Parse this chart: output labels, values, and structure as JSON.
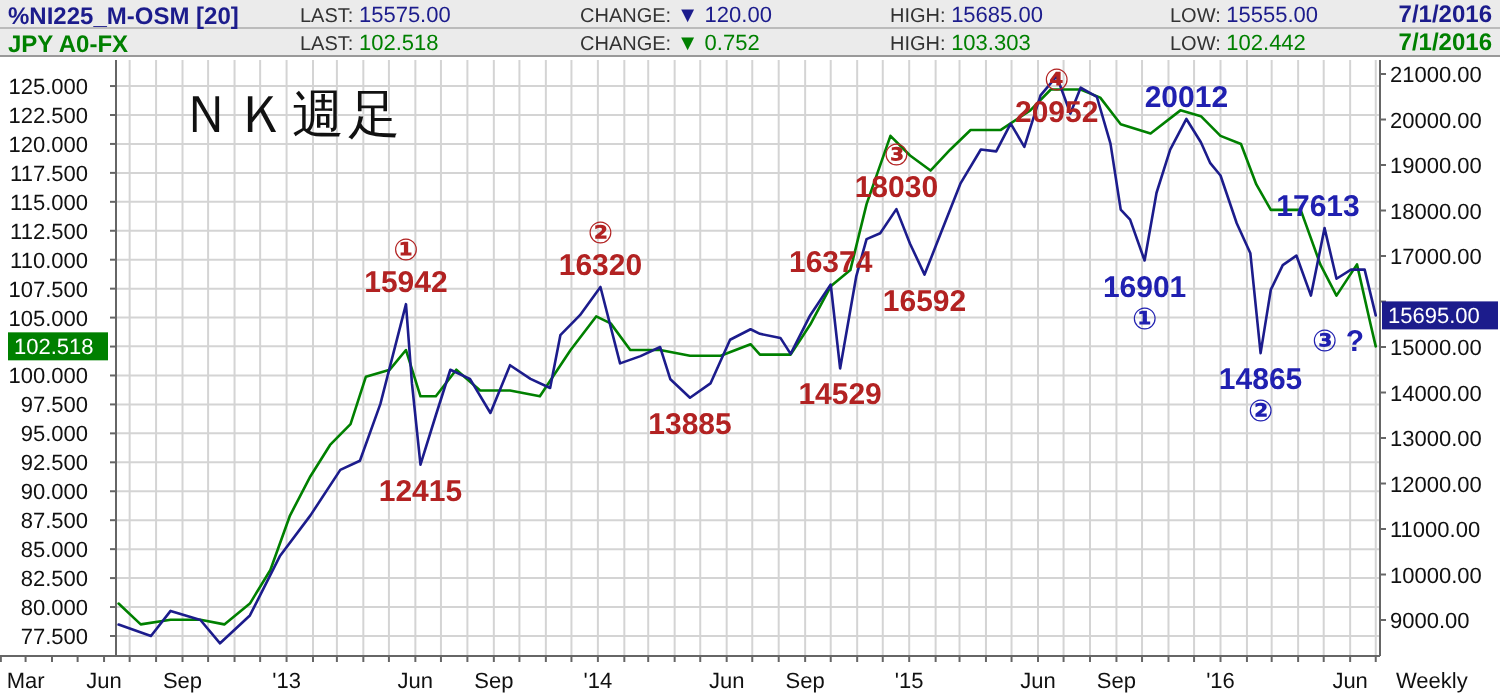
{
  "chart_data": {
    "type": "line",
    "title": "ＮＫ週足",
    "xlabel": "Weekly",
    "xlim": [
      "2012-01-31",
      "2016-07-06"
    ],
    "xticks": [
      {
        "value": "2012-02",
        "label": null
      },
      {
        "value": "2012-03",
        "label": "Mar"
      },
      {
        "value": "2012-04",
        "label": null
      },
      {
        "value": "2012-05",
        "label": null
      },
      {
        "value": "2012-06",
        "label": "Jun"
      },
      {
        "value": "2012-07",
        "label": null
      },
      {
        "value": "2012-08",
        "label": null
      },
      {
        "value": "2012-09",
        "label": "Sep"
      },
      {
        "value": "2012-10",
        "label": null
      },
      {
        "value": "2012-11",
        "label": null
      },
      {
        "value": "2012-12",
        "label": null
      },
      {
        "value": "2013-01",
        "label": "'13"
      },
      {
        "value": "2013-02",
        "label": null
      },
      {
        "value": "2013-03",
        "label": null
      },
      {
        "value": "2013-04",
        "label": null
      },
      {
        "value": "2013-05",
        "label": null
      },
      {
        "value": "2013-06",
        "label": "Jun"
      },
      {
        "value": "2013-07",
        "label": null
      },
      {
        "value": "2013-08",
        "label": null
      },
      {
        "value": "2013-09",
        "label": "Sep"
      },
      {
        "value": "2013-10",
        "label": null
      },
      {
        "value": "2013-11",
        "label": null
      },
      {
        "value": "2013-12",
        "label": null
      },
      {
        "value": "2014-01",
        "label": "'14"
      },
      {
        "value": "2014-02",
        "label": null
      },
      {
        "value": "2014-03",
        "label": null
      },
      {
        "value": "2014-04",
        "label": null
      },
      {
        "value": "2014-05",
        "label": null
      },
      {
        "value": "2014-06",
        "label": "Jun"
      },
      {
        "value": "2014-07",
        "label": null
      },
      {
        "value": "2014-08",
        "label": null
      },
      {
        "value": "2014-09",
        "label": "Sep"
      },
      {
        "value": "2014-10",
        "label": null
      },
      {
        "value": "2014-11",
        "label": null
      },
      {
        "value": "2014-12",
        "label": null
      },
      {
        "value": "2015-01",
        "label": "'15"
      },
      {
        "value": "2015-02",
        "label": null
      },
      {
        "value": "2015-03",
        "label": null
      },
      {
        "value": "2015-04",
        "label": null
      },
      {
        "value": "2015-05",
        "label": null
      },
      {
        "value": "2015-06",
        "label": "Jun"
      },
      {
        "value": "2015-07",
        "label": null
      },
      {
        "value": "2015-08",
        "label": null
      },
      {
        "value": "2015-09",
        "label": "Sep"
      },
      {
        "value": "2015-10",
        "label": null
      },
      {
        "value": "2015-11",
        "label": null
      },
      {
        "value": "2015-12",
        "label": null
      },
      {
        "value": "2016-01",
        "label": "'16"
      },
      {
        "value": "2016-02",
        "label": null
      },
      {
        "value": "2016-03",
        "label": null
      },
      {
        "value": "2016-04",
        "label": null
      },
      {
        "value": "2016-05",
        "label": null
      },
      {
        "value": "2016-06",
        "label": "Jun"
      },
      {
        "value": "2016-07",
        "label": null
      }
    ],
    "y2lim": [
      75.77,
      127.25
    ],
    "y2ticks": [
      {
        "value": 77.5,
        "label": "77.500"
      },
      {
        "value": 80,
        "label": "80.000"
      },
      {
        "value": 82.5,
        "label": "82.500"
      },
      {
        "value": 85,
        "label": "85.000"
      },
      {
        "value": 87.5,
        "label": "87.500"
      },
      {
        "value": 90,
        "label": "90.000"
      },
      {
        "value": 92.5,
        "label": "92.500"
      },
      {
        "value": 95,
        "label": "95.000"
      },
      {
        "value": 97.5,
        "label": "97.500"
      },
      {
        "value": 100,
        "label": "100.000"
      },
      {
        "value": 102.5,
        "label": null
      },
      {
        "value": 105,
        "label": "105.000"
      },
      {
        "value": 107.5,
        "label": "107.500"
      },
      {
        "value": 110,
        "label": "110.000"
      },
      {
        "value": 112.5,
        "label": "112.500"
      },
      {
        "value": 115,
        "label": "115.000"
      },
      {
        "value": 117.5,
        "label": "117.500"
      },
      {
        "value": 120,
        "label": "120.000"
      },
      {
        "value": 122.5,
        "label": "122.500"
      },
      {
        "value": 125,
        "label": "125.000"
      },
      {
        "value": 102.518,
        "label": "102.518"
      }
    ],
    "ylim": [
      8209,
      21308
    ],
    "yticks": [
      {
        "value": 9000,
        "label": "9000.00"
      },
      {
        "value": 10000,
        "label": "10000.00"
      },
      {
        "value": 11000,
        "label": "11000.00"
      },
      {
        "value": 12000,
        "label": "12000.00"
      },
      {
        "value": 13000,
        "label": "13000.00"
      },
      {
        "value": 14000,
        "label": "14000.00"
      },
      {
        "value": 15000,
        "label": "15000.00"
      },
      {
        "value": 16000,
        "label": null
      },
      {
        "value": 17000,
        "label": "17000.00"
      },
      {
        "value": 18000,
        "label": "18000.00"
      },
      {
        "value": 19000,
        "label": "19000.00"
      },
      {
        "value": 20000,
        "label": "20000.00"
      },
      {
        "value": 21000,
        "label": "21000.00"
      },
      {
        "value": 15695,
        "label": "15695.00"
      }
    ],
    "grid": true,
    "legend": "top",
    "series": [
      {
        "name": "%NI225_M-OSM [20]",
        "color": "#1c1c8c",
        "x": [
          "2012-06-18",
          "2012-07-26",
          "2012-08-18",
          "2012-09-22",
          "2012-10-15",
          "2012-11-19",
          "2012-12-24",
          "2013-01-29",
          "2013-03-05",
          "2013-03-28",
          "2013-04-21",
          "2013-05-21",
          "2013-05-28",
          "2013-06-07",
          "2013-06-25",
          "2013-07-12",
          "2013-08-04",
          "2013-08-28",
          "2013-09-20",
          "2013-10-14",
          "2013-11-06",
          "2013-11-18",
          "2013-12-11",
          "2014-01-04",
          "2014-01-27",
          "2014-02-20",
          "2014-03-15",
          "2014-03-27",
          "2014-04-19",
          "2014-05-13",
          "2014-06-05",
          "2014-06-29",
          "2014-07-10",
          "2014-08-03",
          "2014-08-15",
          "2014-09-07",
          "2014-10-01",
          "2014-10-12",
          "2014-10-31",
          "2014-11-12",
          "2014-11-28",
          "2014-12-17",
          "2015-01-02",
          "2015-01-19",
          "2015-02-07",
          "2015-03-02",
          "2015-03-26",
          "2015-04-13",
          "2015-04-30",
          "2015-05-16",
          "2015-06-04",
          "2015-06-23",
          "2015-07-09",
          "2015-07-21",
          "2015-08-09",
          "2015-08-25",
          "2015-09-06",
          "2015-09-17",
          "2015-10-04",
          "2015-10-18",
          "2015-11-03",
          "2015-11-22",
          "2015-12-09",
          "2015-12-20",
          "2016-01-01",
          "2016-01-20",
          "2016-02-05",
          "2016-02-17",
          "2016-02-29",
          "2016-03-14",
          "2016-03-30",
          "2016-04-16",
          "2016-05-02",
          "2016-05-16",
          "2016-06-02",
          "2016-06-18",
          "2016-07-01"
        ],
        "values": [
          8900,
          8650,
          9200,
          9000,
          8488,
          9100,
          10400,
          11300,
          12300,
          12500,
          13750,
          15942,
          14200,
          12415,
          13500,
          14500,
          14300,
          13550,
          14600,
          14300,
          14100,
          15260,
          15700,
          16320,
          14640,
          14800,
          15000,
          14290,
          13885,
          14200,
          15160,
          15390,
          15290,
          15200,
          14850,
          15700,
          16374,
          14529,
          16560,
          17370,
          17500,
          18030,
          17270,
          16592,
          17500,
          18590,
          19340,
          19300,
          19910,
          19400,
          20530,
          20952,
          20130,
          20700,
          20500,
          19470,
          18020,
          17800,
          16901,
          18390,
          19340,
          20012,
          19500,
          19040,
          18770,
          17720,
          17060,
          14865,
          16260,
          16800,
          17010,
          16130,
          17613,
          16500,
          16700,
          16700,
          15695
        ]
      },
      {
        "name": "JPY A0-FX",
        "color": "#008000",
        "axis": "y2",
        "x": [
          "2012-06-18",
          "2012-07-14",
          "2012-08-18",
          "2012-09-22",
          "2012-10-20",
          "2012-11-19",
          "2012-12-13",
          "2013-01-05",
          "2013-01-29",
          "2013-02-21",
          "2013-03-17",
          "2013-04-04",
          "2013-05-02",
          "2013-05-21",
          "2013-06-07",
          "2013-06-25",
          "2013-07-19",
          "2013-08-16",
          "2013-09-20",
          "2013-10-25",
          "2013-11-30",
          "2013-12-30",
          "2014-01-16",
          "2014-02-08",
          "2014-03-15",
          "2014-04-19",
          "2014-05-25",
          "2014-06-29",
          "2014-07-10",
          "2014-08-15",
          "2014-09-07",
          "2014-10-01",
          "2014-10-24",
          "2014-11-12",
          "2014-12-10",
          "2015-01-02",
          "2015-01-26",
          "2015-02-18",
          "2015-03-14",
          "2015-04-18",
          "2015-05-23",
          "2015-06-16",
          "2015-07-21",
          "2015-08-13",
          "2015-09-06",
          "2015-10-11",
          "2015-11-15",
          "2015-12-09",
          "2016-01-01",
          "2016-01-25",
          "2016-02-12",
          "2016-02-29",
          "2016-04-04",
          "2016-04-27",
          "2016-05-16",
          "2016-06-09",
          "2016-06-25",
          "2016-07-01"
        ],
        "values": [
          80.3,
          78.5,
          78.9,
          78.9,
          78.5,
          80.3,
          83.2,
          87.9,
          91.3,
          94.0,
          95.8,
          99.9,
          100.5,
          102.2,
          98.2,
          98.2,
          100.5,
          98.7,
          98.7,
          98.2,
          102.2,
          105.1,
          104.5,
          102.2,
          102.2,
          101.7,
          101.7,
          102.7,
          101.8,
          101.8,
          104.4,
          107.7,
          109.1,
          114.8,
          120.7,
          119.0,
          117.7,
          119.5,
          121.2,
          121.2,
          122.9,
          124.7,
          124.7,
          124.0,
          121.7,
          120.9,
          122.9,
          122.4,
          120.7,
          120.0,
          116.5,
          114.3,
          114.3,
          109.6,
          106.9,
          109.6,
          104.4,
          102.518
        ]
      }
    ],
    "annotations": [
      "LAST: 15575.00",
      "CHANGE: ▼ 120.00",
      "HIGH: 15685.00",
      "LOW: 15555.00",
      "7/1/2016",
      "LAST: 102.518",
      "CHANGE: ▼ 0.752",
      "HIGH: 103.303",
      "LOW: 102.442",
      "7/1/2016",
      {
        "text": "①\n15942",
        "x": "2013-05-21",
        "y": 15942
      },
      {
        "text": "12415",
        "x": "2013-06-07",
        "y": 12415
      },
      {
        "text": "②\n16320",
        "x": "2014-01-04",
        "y": 16320
      },
      {
        "text": "13885",
        "x": "2014-04-19",
        "y": 13885
      },
      {
        "text": "16374",
        "x": "2014-10-01",
        "y": 16374
      },
      {
        "text": "14529",
        "x": "2014-10-12",
        "y": 14529
      },
      {
        "text": "③\n18030",
        "x": "2014-12-17",
        "y": 18030
      },
      {
        "text": "16592",
        "x": "2015-01-19",
        "y": 16592
      },
      {
        "text": "④\n20952",
        "x": "2015-06-23",
        "y": 20952
      },
      {
        "text": "16901\n①",
        "x": "2015-10-04",
        "y": 16901
      },
      {
        "text": "20012",
        "x": "2015-11-22",
        "y": 20012
      },
      {
        "text": "14865\n②",
        "x": "2016-02-17",
        "y": 14865
      },
      {
        "text": "17613",
        "x": "2016-05-02",
        "y": 17613
      },
      {
        "text": "③ ?",
        "x": "2016-07-01",
        "y": 15695
      }
    ]
  }
}
